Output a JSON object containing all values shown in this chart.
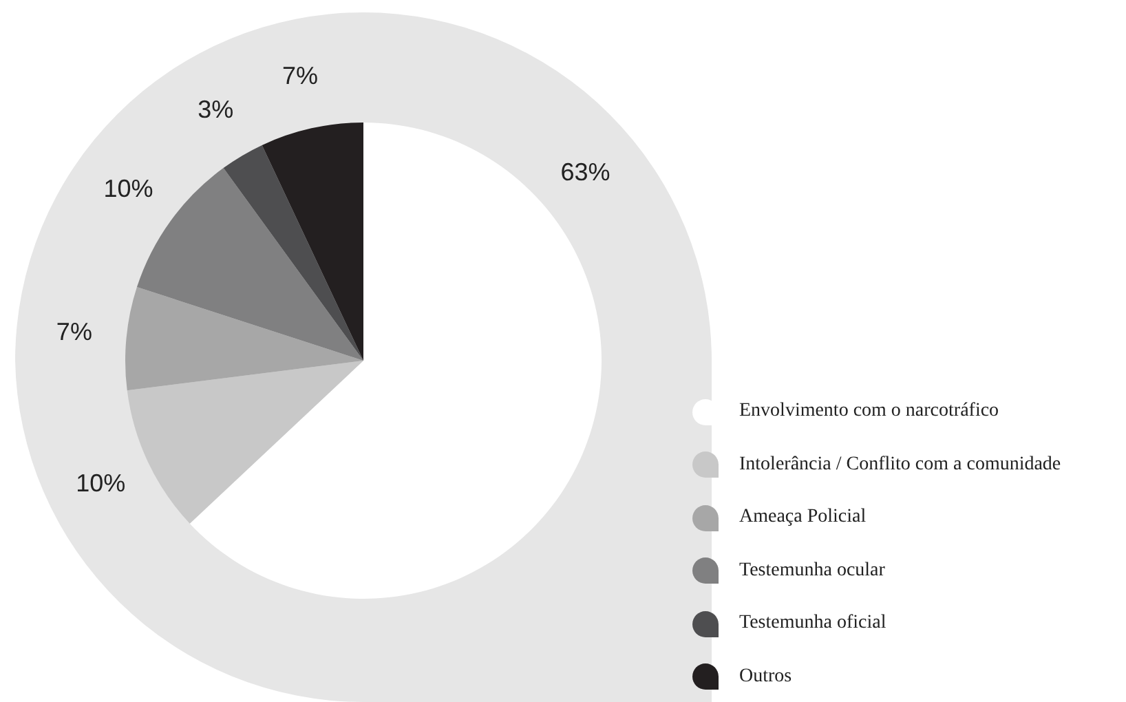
{
  "chart_data": {
    "type": "pie",
    "categories": [
      "Envolvimento com o narcotráfico",
      "Intolerância / Conflito com a comunidade",
      "Ameaça Policial",
      "Testemunha ocular",
      "Testemunha oficial",
      "Outros"
    ],
    "values": [
      63,
      10,
      7,
      10,
      3,
      7
    ],
    "colors": [
      "#ffffff",
      "#c8c8c8",
      "#a7a7a7",
      "#808081",
      "#4e4e50",
      "#231f20"
    ],
    "value_labels": [
      "63%",
      "10%",
      "7%",
      "10%",
      "3%",
      "7%"
    ],
    "legend": "right"
  }
}
